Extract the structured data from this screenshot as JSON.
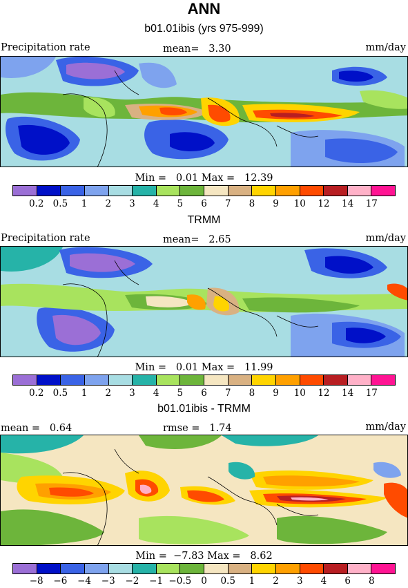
{
  "title": "ANN",
  "panels": [
    {
      "id": "model",
      "subtitle": "b01.01ibis (yrs 975-999)",
      "left_label": "Precipitation rate",
      "center_label": "mean=   3.30",
      "right_label": "mm/day",
      "minmax": "Min =   0.01 Max =   12.39",
      "colorbar": [
        "#9b6fd6",
        "#0010c8",
        "#3a63e6",
        "#7ea3ee",
        "#a8dde3",
        "#26b3a8",
        "#a8e35e",
        "#6db53b",
        "#f5e6c1",
        "#d9b182",
        "#ffd400",
        "#ffa000",
        "#ff4b00",
        "#b81e22",
        "#ffb1c8",
        "#ff1493"
      ],
      "ticks": [
        "0.2",
        "0.5",
        "1",
        "2",
        "3",
        "4",
        "5",
        "6",
        "7",
        "8",
        "9",
        "10",
        "12",
        "14",
        "17"
      ]
    },
    {
      "id": "obs",
      "subtitle": "TRMM",
      "left_label": "Precipitation rate",
      "center_label": "mean=   2.65",
      "right_label": "mm/day",
      "minmax": "Min =   0.01 Max =   11.99",
      "colorbar": [
        "#9b6fd6",
        "#0010c8",
        "#3a63e6",
        "#7ea3ee",
        "#a8dde3",
        "#26b3a8",
        "#a8e35e",
        "#6db53b",
        "#f5e6c1",
        "#d9b182",
        "#ffd400",
        "#ffa000",
        "#ff4b00",
        "#b81e22",
        "#ffb1c8",
        "#ff1493"
      ],
      "ticks": [
        "0.2",
        "0.5",
        "1",
        "2",
        "3",
        "4",
        "5",
        "6",
        "7",
        "8",
        "9",
        "10",
        "12",
        "14",
        "17"
      ]
    },
    {
      "id": "diff",
      "subtitle": "b01.01ibis - TRMM",
      "left_label": "mean =   0.64",
      "center_label": "rmse =   1.74",
      "right_label": "mm/day",
      "minmax": "Min =  −7.83 Max =   8.62",
      "colorbar": [
        "#9b6fd6",
        "#0010c8",
        "#3a63e6",
        "#7ea3ee",
        "#a8dde3",
        "#26b3a8",
        "#a8e35e",
        "#6db53b",
        "#f5e6c1",
        "#d9b182",
        "#ffd400",
        "#ffa000",
        "#ff4b00",
        "#b81e22",
        "#ffb1c8",
        "#ff1493"
      ],
      "ticks": [
        "−8",
        "−6",
        "−4",
        "−3",
        "−2",
        "−1",
        "−0.5",
        "0",
        "0.5",
        "1",
        "2",
        "3",
        "4",
        "6",
        "8"
      ]
    }
  ]
}
